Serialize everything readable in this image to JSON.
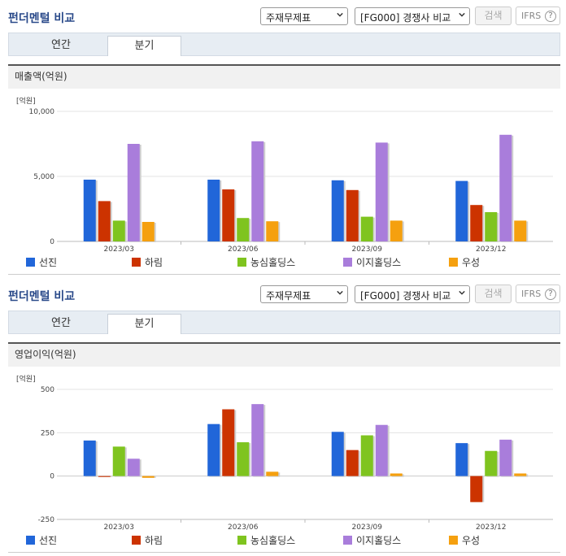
{
  "sections": [
    {
      "title": "펀더멘털 비교",
      "select1": "주재무제표",
      "select2": "[FG000] 경쟁사 비교",
      "search_label": "검색",
      "ifrs_label": "IFRS",
      "help_label": "?",
      "tabs": [
        "연간",
        "분기"
      ],
      "subtitle": "매출액(억원)"
    },
    {
      "title": "펀더멘털 비교",
      "select1": "주재무제표",
      "select2": "[FG000] 경쟁사 비교",
      "search_label": "검색",
      "ifrs_label": "IFRS",
      "help_label": "?",
      "tabs": [
        "연간",
        "분기"
      ],
      "subtitle": "영업이익(억원)"
    }
  ],
  "chart_data": [
    {
      "type": "bar",
      "unit_label": "[억원]",
      "categories": [
        "2023/03",
        "2023/06",
        "2023/09",
        "2023/12"
      ],
      "ylim": [
        0,
        10000
      ],
      "yticks": [
        0,
        5000,
        10000
      ],
      "ytick_labels": [
        "0",
        "5,000",
        "10,000"
      ],
      "grid": true,
      "legend_position": "bottom",
      "series": [
        {
          "name": "선진",
          "color": "#2166d9",
          "values": [
            4750,
            4750,
            4700,
            4650
          ]
        },
        {
          "name": "하림",
          "color": "#cc3300",
          "values": [
            3100,
            4000,
            3950,
            2800
          ]
        },
        {
          "name": "농심홀딩스",
          "color": "#7fc41f",
          "values": [
            1600,
            1800,
            1900,
            2250
          ]
        },
        {
          "name": "이지홀딩스",
          "color": "#a97ddb",
          "values": [
            7500,
            7700,
            7600,
            8200
          ]
        },
        {
          "name": "우성",
          "color": "#f5a00f",
          "values": [
            1500,
            1550,
            1600,
            1600
          ]
        }
      ]
    },
    {
      "type": "bar",
      "unit_label": "[억원]",
      "categories": [
        "2023/03",
        "2023/06",
        "2023/09",
        "2023/12"
      ],
      "ylim": [
        -250,
        500
      ],
      "yticks": [
        -250,
        0,
        250,
        500
      ],
      "ytick_labels": [
        "-250",
        "0",
        "250",
        "500"
      ],
      "grid": true,
      "legend_position": "bottom",
      "series": [
        {
          "name": "선진",
          "color": "#2166d9",
          "values": [
            205,
            300,
            255,
            190
          ]
        },
        {
          "name": "하림",
          "color": "#cc3300",
          "values": [
            -5,
            385,
            150,
            -150
          ]
        },
        {
          "name": "농심홀딩스",
          "color": "#7fc41f",
          "values": [
            170,
            195,
            235,
            145
          ]
        },
        {
          "name": "이지홀딩스",
          "color": "#a97ddb",
          "values": [
            100,
            415,
            295,
            210
          ]
        },
        {
          "name": "우성",
          "color": "#f5a00f",
          "values": [
            -10,
            25,
            15,
            15
          ]
        }
      ]
    }
  ]
}
